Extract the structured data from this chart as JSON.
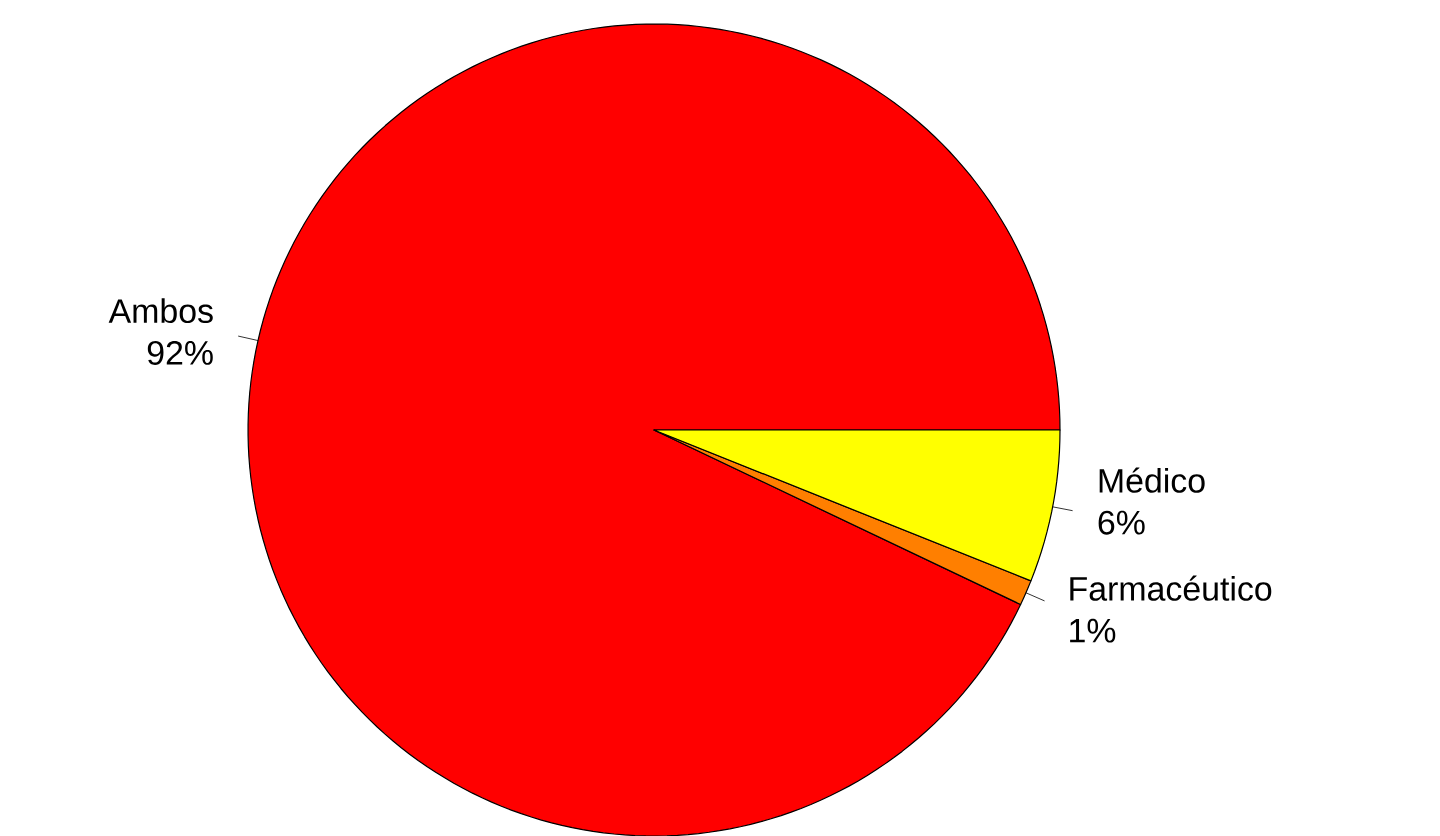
{
  "chart_data": {
    "type": "pie",
    "categories": [
      "Ambos",
      "Farmacéutico",
      "Médico"
    ],
    "values": [
      92,
      1,
      6
    ],
    "colors": [
      "#ff0000",
      "#ff7f00",
      "#ffff00"
    ],
    "value_labels": [
      "92%",
      "1%",
      "6%"
    ]
  }
}
